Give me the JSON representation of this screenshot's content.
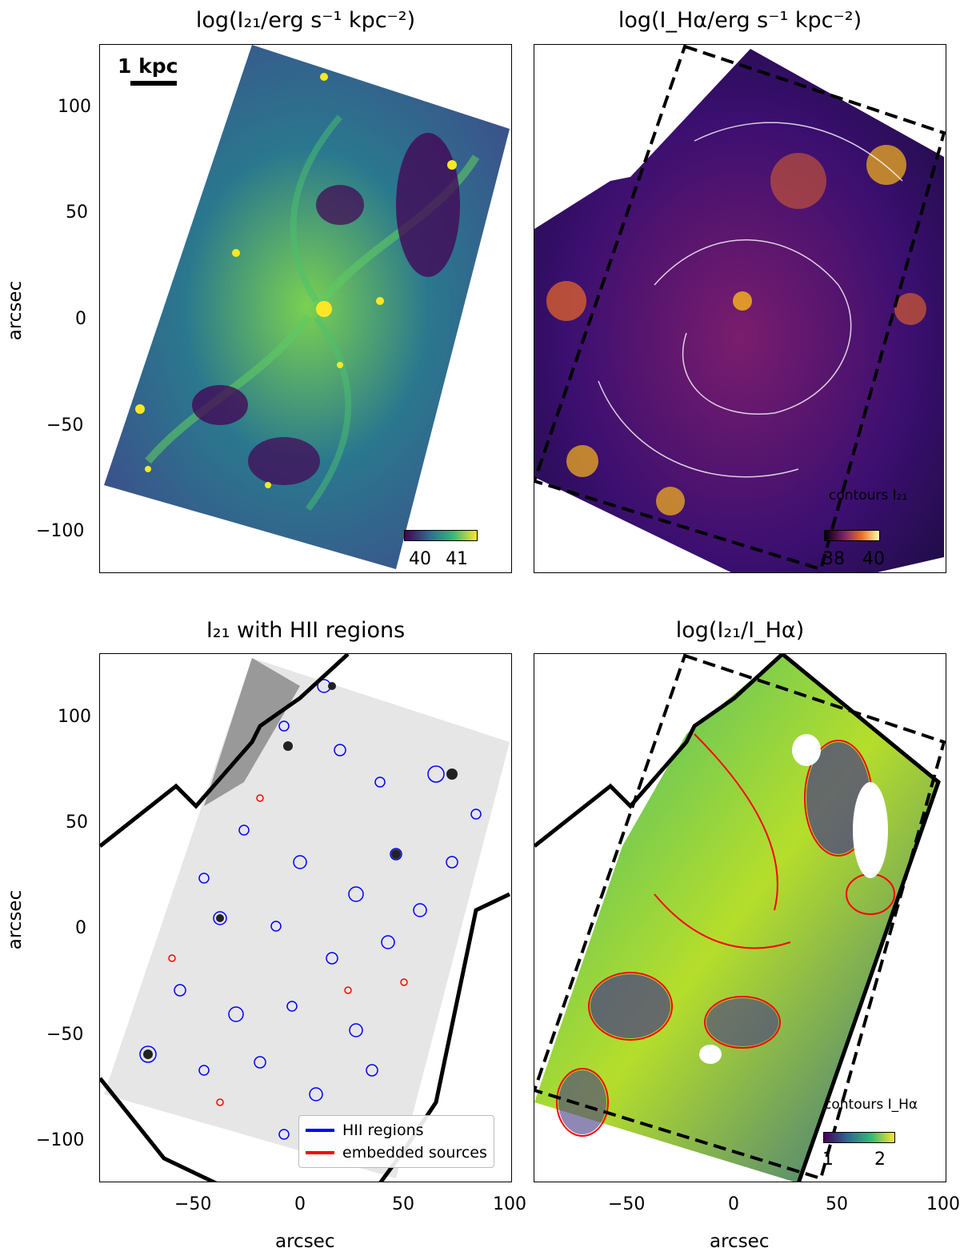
{
  "panels": {
    "top_left": {
      "title": "log(I₂₁/erg s⁻¹ kpc⁻²)",
      "scalebar": "1 kpc",
      "colorbar_ticks": [
        "40",
        "41"
      ],
      "colormap_colors": [
        "#440154",
        "#31688e",
        "#35b779",
        "#fde725"
      ]
    },
    "top_right": {
      "title": "log(I_Hα/erg s⁻¹ kpc⁻²)",
      "contour_note": "contours I₂₁",
      "colorbar_ticks": [
        "38",
        "40"
      ],
      "colormap_colors": [
        "#000004",
        "#781c6d",
        "#ed6925",
        "#fcffa4"
      ]
    },
    "bottom_left": {
      "title": "I₂₁ with HII regions",
      "legend": [
        {
          "label": "HII regions",
          "color": "#0000ff"
        },
        {
          "label": "embedded sources",
          "color": "#ff0000"
        }
      ]
    },
    "bottom_right": {
      "title": "log(I₂₁/I_Hα)",
      "contour_note": "contours I_Hα",
      "colorbar_ticks": [
        "1",
        "2"
      ],
      "colormap_colors": [
        "#440154",
        "#31688e",
        "#35b779",
        "#fde725"
      ]
    }
  },
  "axes": {
    "ylabel": "arcsec",
    "xlabel": "arcsec",
    "y_ticks": [
      "100",
      "50",
      "0",
      "−50",
      "−100"
    ],
    "x_ticks": [
      "−50",
      "0",
      "50",
      "100"
    ],
    "y_range": [
      -120,
      130
    ],
    "x_range": [
      -95,
      100
    ]
  }
}
